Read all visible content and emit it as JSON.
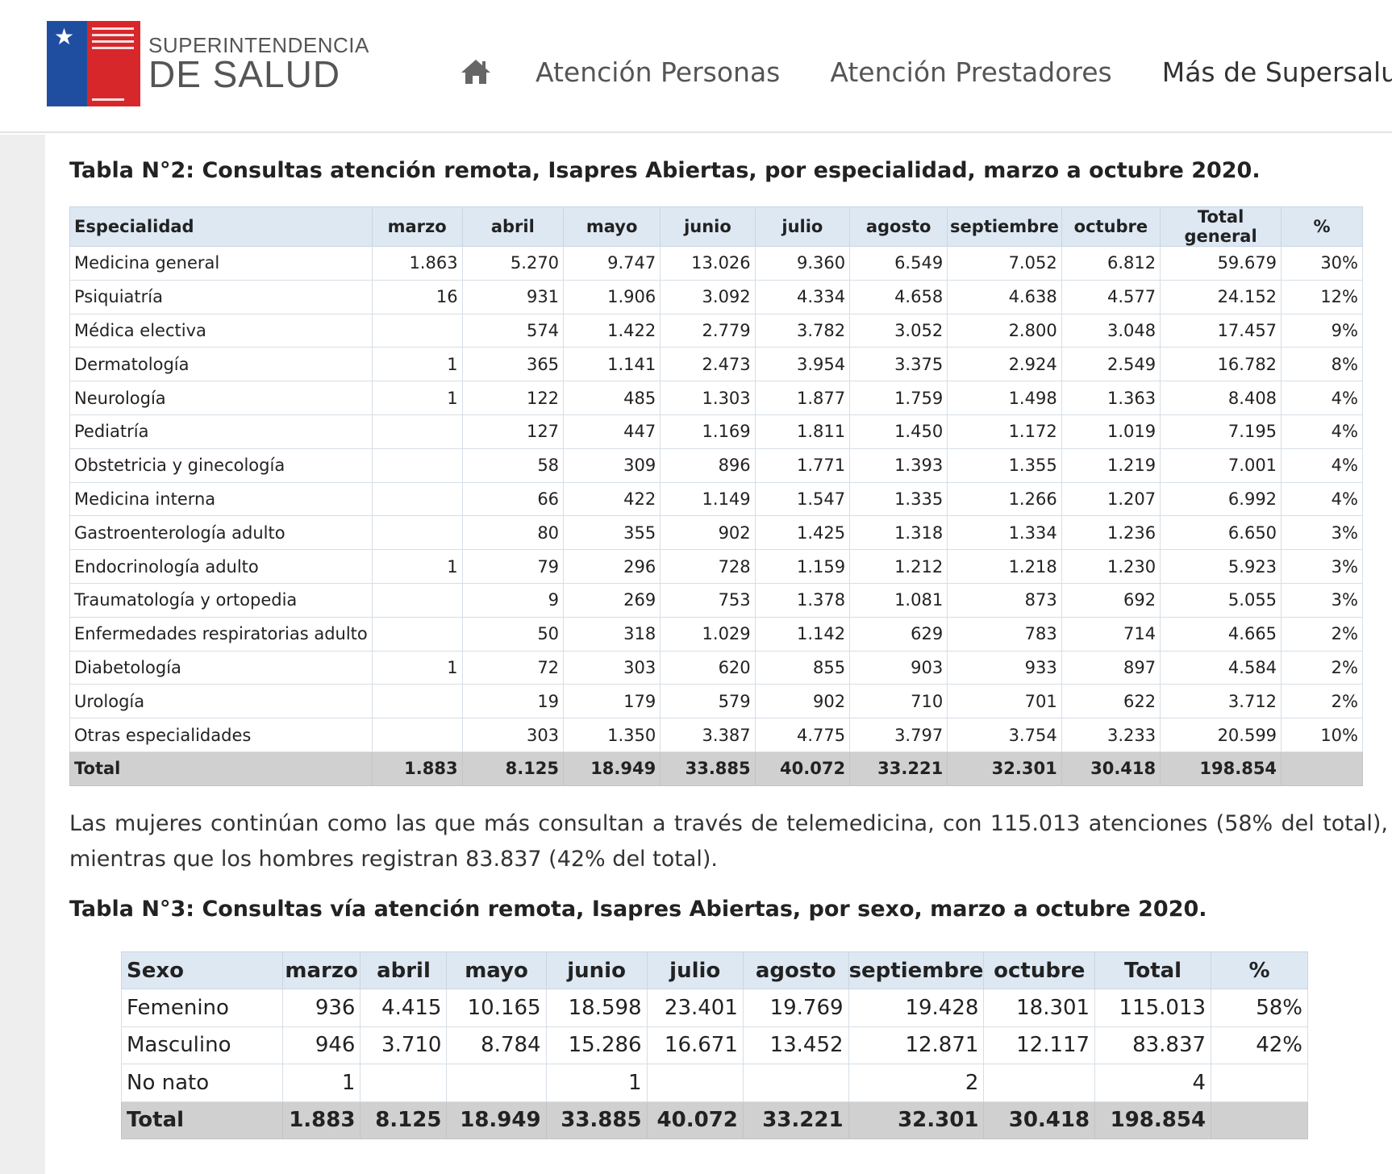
{
  "header": {
    "logo": {
      "line1": "SUPERINTENDENCIA",
      "line2": "DE SALUD"
    },
    "nav": [
      "Atención Personas",
      "Atención Prestadores",
      "Más de Supersalud"
    ],
    "home_icon": "home-icon"
  },
  "table2": {
    "title": "Tabla N°2: Consultas atención remota, Isapres Abiertas, por especialidad, marzo a octubre 2020.",
    "headers": [
      "Especialidad",
      "marzo",
      "abril",
      "mayo",
      "junio",
      "julio",
      "agosto",
      "septiembre",
      "octubre",
      "Total general",
      "%"
    ],
    "rows": [
      [
        "Medicina general",
        "1.863",
        "5.270",
        "9.747",
        "13.026",
        "9.360",
        "6.549",
        "7.052",
        "6.812",
        "59.679",
        "30%"
      ],
      [
        "Psiquiatría",
        "16",
        "931",
        "1.906",
        "3.092",
        "4.334",
        "4.658",
        "4.638",
        "4.577",
        "24.152",
        "12%"
      ],
      [
        "Médica electiva",
        "",
        "574",
        "1.422",
        "2.779",
        "3.782",
        "3.052",
        "2.800",
        "3.048",
        "17.457",
        "9%"
      ],
      [
        "Dermatología",
        "1",
        "365",
        "1.141",
        "2.473",
        "3.954",
        "3.375",
        "2.924",
        "2.549",
        "16.782",
        "8%"
      ],
      [
        "Neurología",
        "1",
        "122",
        "485",
        "1.303",
        "1.877",
        "1.759",
        "1.498",
        "1.363",
        "8.408",
        "4%"
      ],
      [
        "Pediatría",
        "",
        "127",
        "447",
        "1.169",
        "1.811",
        "1.450",
        "1.172",
        "1.019",
        "7.195",
        "4%"
      ],
      [
        "Obstetricia y ginecología",
        "",
        "58",
        "309",
        "896",
        "1.771",
        "1.393",
        "1.355",
        "1.219",
        "7.001",
        "4%"
      ],
      [
        "Medicina interna",
        "",
        "66",
        "422",
        "1.149",
        "1.547",
        "1.335",
        "1.266",
        "1.207",
        "6.992",
        "4%"
      ],
      [
        "Gastroenterología adulto",
        "",
        "80",
        "355",
        "902",
        "1.425",
        "1.318",
        "1.334",
        "1.236",
        "6.650",
        "3%"
      ],
      [
        "Endocrinología adulto",
        "1",
        "79",
        "296",
        "728",
        "1.159",
        "1.212",
        "1.218",
        "1.230",
        "5.923",
        "3%"
      ],
      [
        "Traumatología y ortopedia",
        "",
        "9",
        "269",
        "753",
        "1.378",
        "1.081",
        "873",
        "692",
        "5.055",
        "3%"
      ],
      [
        "Enfermedades respiratorias adulto",
        "",
        "50",
        "318",
        "1.029",
        "1.142",
        "629",
        "783",
        "714",
        "4.665",
        "2%"
      ],
      [
        "Diabetología",
        "1",
        "72",
        "303",
        "620",
        "855",
        "903",
        "933",
        "897",
        "4.584",
        "2%"
      ],
      [
        "Urología",
        "",
        "19",
        "179",
        "579",
        "902",
        "710",
        "701",
        "622",
        "3.712",
        "2%"
      ],
      [
        "Otras especialidades",
        "",
        "303",
        "1.350",
        "3.387",
        "4.775",
        "3.797",
        "3.754",
        "3.233",
        "20.599",
        "10%"
      ]
    ],
    "total": [
      "Total",
      "1.883",
      "8.125",
      "18.949",
      "33.885",
      "40.072",
      "33.221",
      "32.301",
      "30.418",
      "198.854",
      ""
    ]
  },
  "paragraph": "Las mujeres continúan como las que más consultan a través de telemedicina, con 115.013 atenciones (58% del total), mientras que los hombres registran 83.837 (42% del total).",
  "table3": {
    "title": "Tabla N°3: Consultas vía atención remota, Isapres Abiertas, por sexo, marzo a octubre 2020.",
    "headers": [
      "Sexo",
      "marzo",
      "abril",
      "mayo",
      "junio",
      "julio",
      "agosto",
      "septiembre",
      "octubre",
      "Total",
      "%"
    ],
    "rows": [
      [
        "Femenino",
        "936",
        "4.415",
        "10.165",
        "18.598",
        "23.401",
        "19.769",
        "19.428",
        "18.301",
        "115.013",
        "58%"
      ],
      [
        "Masculino",
        "946",
        "3.710",
        "8.784",
        "15.286",
        "16.671",
        "13.452",
        "12.871",
        "12.117",
        "83.837",
        "42%"
      ],
      [
        "No nato",
        "1",
        "",
        "",
        "1",
        "",
        "",
        "2",
        "",
        "4",
        ""
      ]
    ],
    "total": [
      "Total",
      "1.883",
      "8.125",
      "18.949",
      "33.885",
      "40.072",
      "33.221",
      "32.301",
      "30.418",
      "198.854",
      ""
    ]
  }
}
